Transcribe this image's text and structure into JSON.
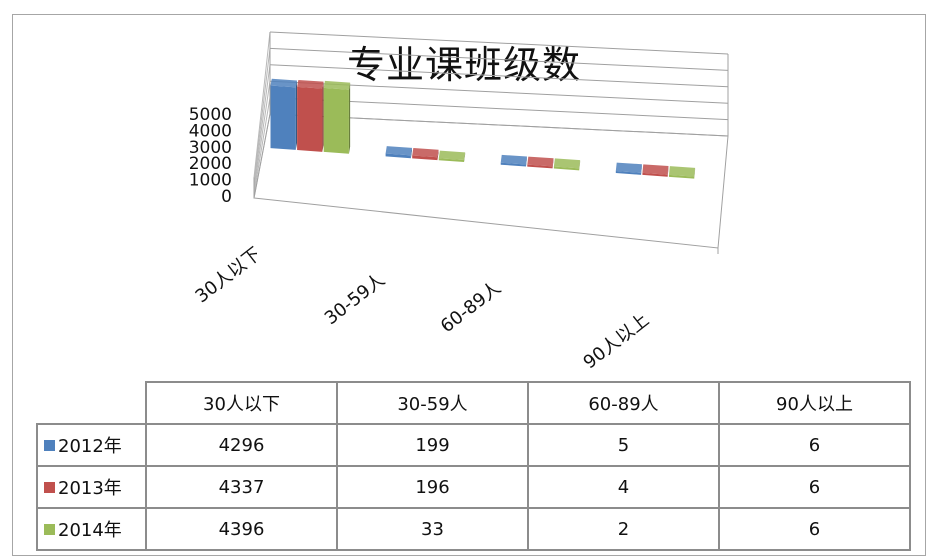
{
  "chart_data": {
    "type": "bar",
    "title": "专业课班级数",
    "categories": [
      "30人以下",
      "30-59人",
      "60-89人",
      "90人以上"
    ],
    "series": [
      {
        "name": "2012年",
        "values": [
          4296,
          199,
          5,
          6
        ],
        "color": "#4f81bd"
      },
      {
        "name": "2013年",
        "values": [
          4337,
          196,
          4,
          6
        ],
        "color": "#c0504d"
      },
      {
        "name": "2014年",
        "values": [
          4396,
          33,
          2,
          6
        ],
        "color": "#9bbb59"
      }
    ],
    "y_ticks": [
      "0",
      "1000",
      "2000",
      "3000",
      "4000",
      "5000"
    ],
    "ylim": [
      0,
      5000
    ],
    "grid": true,
    "legend": "data-table"
  }
}
